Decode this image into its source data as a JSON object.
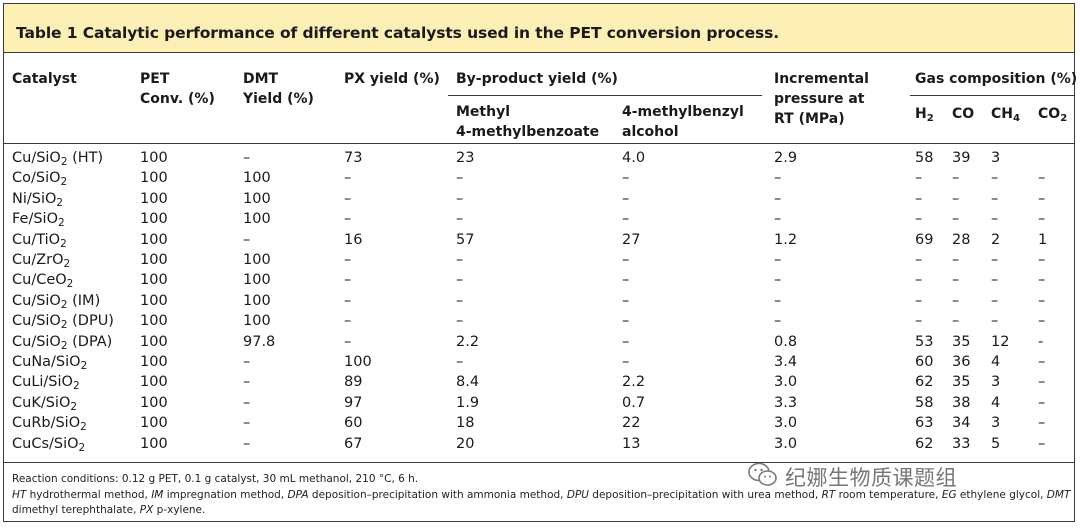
{
  "title": "Table 1 Catalytic performance of different catalysts used in the PET conversion process.",
  "headers": {
    "catalyst": "Catalyst",
    "pet_conv": [
      "PET",
      "Conv. (%)"
    ],
    "dmt_yield": [
      "DMT",
      "Yield (%)"
    ],
    "px_yield": "PX yield (%)",
    "byproduct": "By-product yield (%)",
    "byproduct_sub1": [
      "Methyl",
      "4-methylbenzoate"
    ],
    "byproduct_sub2": [
      "4-methylbenzyl",
      "alcohol"
    ],
    "pressure": [
      "Incremental",
      "pressure at",
      "RT (MPa)"
    ],
    "gas": "Gas composition (%)",
    "gas_cols": [
      {
        "base": "H",
        "sub": "2"
      },
      {
        "base": "CO",
        "sub": ""
      },
      {
        "base": "CH",
        "sub": "4"
      },
      {
        "base": "CO",
        "sub": "2"
      }
    ]
  },
  "rows": [
    {
      "cat_pre": "Cu/SiO",
      "cat_sub": "2",
      "cat_post": " (HT)",
      "pet": "100",
      "dmt": "–",
      "px": "73",
      "mb": "23",
      "alc": "4.0",
      "p": "2.9",
      "h2": "58",
      "co": "39",
      "ch4": "3",
      "co2": ""
    },
    {
      "cat_pre": "Co/SiO",
      "cat_sub": "2",
      "cat_post": "",
      "pet": "100",
      "dmt": "100",
      "px": "–",
      "mb": "–",
      "alc": "–",
      "p": "–",
      "h2": "–",
      "co": "–",
      "ch4": "–",
      "co2": "–"
    },
    {
      "cat_pre": "Ni/SiO",
      "cat_sub": "2",
      "cat_post": "",
      "pet": "100",
      "dmt": "100",
      "px": "–",
      "mb": "–",
      "alc": "–",
      "p": "–",
      "h2": "–",
      "co": "–",
      "ch4": "–",
      "co2": "–"
    },
    {
      "cat_pre": "Fe/SiO",
      "cat_sub": "2",
      "cat_post": "",
      "pet": "100",
      "dmt": "100",
      "px": "–",
      "mb": "–",
      "alc": "–",
      "p": "–",
      "h2": "–",
      "co": "–",
      "ch4": "–",
      "co2": "–"
    },
    {
      "cat_pre": "Cu/TiO",
      "cat_sub": "2",
      "cat_post": "",
      "pet": "100",
      "dmt": "–",
      "px": "16",
      "mb": "57",
      "alc": "27",
      "p": "1.2",
      "h2": "69",
      "co": "28",
      "ch4": "2",
      "co2": "1"
    },
    {
      "cat_pre": "Cu/ZrO",
      "cat_sub": "2",
      "cat_post": "",
      "pet": "100",
      "dmt": "100",
      "px": "–",
      "mb": "–",
      "alc": "–",
      "p": "–",
      "h2": "–",
      "co": "–",
      "ch4": "–",
      "co2": "–"
    },
    {
      "cat_pre": "Cu/CeO",
      "cat_sub": "2",
      "cat_post": "",
      "pet": "100",
      "dmt": "100",
      "px": "–",
      "mb": "–",
      "alc": "–",
      "p": "–",
      "h2": "–",
      "co": "–",
      "ch4": "–",
      "co2": "–"
    },
    {
      "cat_pre": "Cu/SiO",
      "cat_sub": "2",
      "cat_post": " (IM)",
      "pet": "100",
      "dmt": "100",
      "px": "–",
      "mb": "–",
      "alc": "–",
      "p": "–",
      "h2": "–",
      "co": "–",
      "ch4": "–",
      "co2": "–"
    },
    {
      "cat_pre": "Cu/SiO",
      "cat_sub": "2",
      "cat_post": " (DPU)",
      "pet": "100",
      "dmt": "100",
      "px": "–",
      "mb": "–",
      "alc": "–",
      "p": "–",
      "h2": "–",
      "co": "–",
      "ch4": "–",
      "co2": "–"
    },
    {
      "cat_pre": "Cu/SiO",
      "cat_sub": "2",
      "cat_post": " (DPA)",
      "pet": "100",
      "dmt": "97.8",
      "px": "–",
      "mb": "2.2",
      "alc": "–",
      "p": "0.8",
      "h2": "53",
      "co": "35",
      "ch4": "12",
      "co2": "-"
    },
    {
      "cat_pre": "CuNa/SiO",
      "cat_sub": "2",
      "cat_post": "",
      "pet": "100",
      "dmt": "–",
      "px": "100",
      "mb": "–",
      "alc": "–",
      "p": "3.4",
      "h2": "60",
      "co": "36",
      "ch4": "4",
      "co2": "–"
    },
    {
      "cat_pre": "CuLi/SiO",
      "cat_sub": "2",
      "cat_post": "",
      "pet": "100",
      "dmt": "–",
      "px": "89",
      "mb": "8.4",
      "alc": "2.2",
      "p": "3.0",
      "h2": "62",
      "co": "35",
      "ch4": "3",
      "co2": "–"
    },
    {
      "cat_pre": "CuK/SiO",
      "cat_sub": "2",
      "cat_post": "",
      "pet": "100",
      "dmt": "–",
      "px": "97",
      "mb": "1.9",
      "alc": "0.7",
      "p": "3.3",
      "h2": "58",
      "co": "38",
      "ch4": "4",
      "co2": "–"
    },
    {
      "cat_pre": "CuRb/SiO",
      "cat_sub": "2",
      "cat_post": "",
      "pet": "100",
      "dmt": "–",
      "px": "60",
      "mb": "18",
      "alc": "22",
      "p": "3.0",
      "h2": "63",
      "co": "34",
      "ch4": "3",
      "co2": "–"
    },
    {
      "cat_pre": "CuCs/SiO",
      "cat_sub": "2",
      "cat_post": "",
      "pet": "100",
      "dmt": "–",
      "px": "67",
      "mb": "20",
      "alc": "13",
      "p": "3.0",
      "h2": "62",
      "co": "33",
      "ch4": "5",
      "co2": "–"
    }
  ],
  "notes": {
    "line1": "Reaction conditions: 0.12 g PET, 0.1 g catalyst, 30 mL methanol, 210 °C, 6 h.",
    "line2_parts": [
      {
        "t": "HT",
        "i": true
      },
      {
        "t": " hydrothermal method, ",
        "i": false
      },
      {
        "t": "IM",
        "i": true
      },
      {
        "t": " impregnation method, ",
        "i": false
      },
      {
        "t": "DPA",
        "i": true
      },
      {
        "t": " deposition–precipitation with ammonia method, ",
        "i": false
      },
      {
        "t": "DPU",
        "i": true
      },
      {
        "t": " deposition–precipitation with urea method, ",
        "i": false
      },
      {
        "t": "RT",
        "i": true
      },
      {
        "t": " room temperature, ",
        "i": false
      },
      {
        "t": "EG",
        "i": true
      },
      {
        "t": " ethylene glycol, ",
        "i": false
      },
      {
        "t": "DMT",
        "i": true
      }
    ],
    "line3_parts": [
      {
        "t": "dimethyl terephthalate, ",
        "i": false
      },
      {
        "t": "PX",
        "i": true
      },
      {
        "t": " p",
        "i": false
      },
      {
        "t": "",
        "i": false
      },
      {
        "t": "-xylene.",
        "i": false
      }
    ]
  },
  "watermark": "纪娜生物质课题组",
  "colors": {
    "title_bg": "#fbefb6",
    "rule": "#3a3a3a",
    "text": "#1a1a1a"
  }
}
